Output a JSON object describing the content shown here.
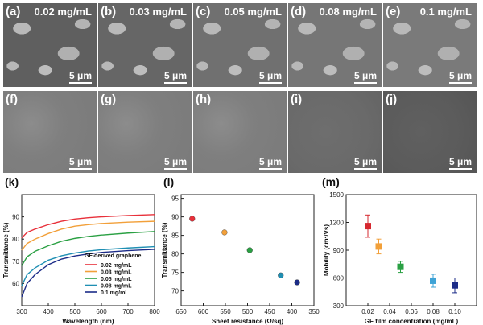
{
  "sem_top": [
    {
      "label": "(a)",
      "conc": "0.02 mg/mL",
      "scale": "5 μm"
    },
    {
      "label": "(b)",
      "conc": "0.03 mg/mL",
      "scale": "5 μm"
    },
    {
      "label": "(c)",
      "conc": "0.05 mg/mL",
      "scale": "5 μm"
    },
    {
      "label": "(d)",
      "conc": "0.08 mg/mL",
      "scale": "5 μm"
    },
    {
      "label": "(e)",
      "conc": "0.1 mg/mL",
      "scale": "5 μm"
    }
  ],
  "sem_bottom": [
    {
      "label": "(f)",
      "scale": "5 μm"
    },
    {
      "label": "(g)",
      "scale": "5 μm"
    },
    {
      "label": "(h)",
      "scale": "5 μm"
    },
    {
      "label": "(i)",
      "scale": "5 μm"
    },
    {
      "label": "(j)",
      "scale": "5 μm"
    }
  ],
  "chart_data": [
    {
      "panel": "(k)",
      "type": "line",
      "xlabel": "Wavelength (nm)",
      "ylabel": "Transmittance (%)",
      "xlim": [
        300,
        800
      ],
      "ylim": [
        50,
        100
      ],
      "xticks": [
        300,
        400,
        500,
        600,
        700,
        800
      ],
      "yticks": [
        60,
        70,
        80,
        90
      ],
      "legend_title": "GF-derived graphene",
      "legend_position": "bottom-right",
      "series": [
        {
          "name": "0.02 mg/mL",
          "color": "#e8303a",
          "x": [
            300,
            320,
            350,
            400,
            450,
            500,
            550,
            600,
            700,
            800
          ],
          "values": [
            80.5,
            83,
            84.5,
            86.5,
            88,
            89,
            89.6,
            90,
            90.6,
            91
          ]
        },
        {
          "name": "0.03 mg/mL",
          "color": "#f2a03a",
          "x": [
            300,
            320,
            350,
            400,
            450,
            500,
            550,
            600,
            700,
            800
          ],
          "values": [
            75,
            78,
            80,
            82.5,
            84.5,
            85.8,
            86.5,
            87,
            87.6,
            88
          ]
        },
        {
          "name": "0.05 mg/mL",
          "color": "#2aa043",
          "x": [
            300,
            320,
            350,
            400,
            450,
            500,
            550,
            600,
            700,
            800
          ],
          "values": [
            68,
            72,
            74.5,
            77,
            79,
            80.3,
            81.2,
            81.8,
            82.7,
            83.4
          ]
        },
        {
          "name": "0.08 mg/mL",
          "color": "#1f8fb3",
          "x": [
            300,
            320,
            350,
            400,
            450,
            500,
            550,
            600,
            700,
            800
          ],
          "values": [
            59,
            64,
            67,
            70.5,
            72.5,
            73.7,
            74.6,
            75.2,
            76,
            76.6
          ]
        },
        {
          "name": "0.1 mg/mL",
          "color": "#1c2c88",
          "x": [
            300,
            320,
            350,
            400,
            450,
            500,
            550,
            600,
            700,
            800
          ],
          "values": [
            54,
            60,
            64,
            68.5,
            71,
            72.4,
            73.3,
            74,
            74.8,
            75.4
          ]
        }
      ]
    },
    {
      "panel": "(l)",
      "type": "scatter",
      "xlabel": "Sheet resistance (Ω/sq)",
      "ylabel": "Transmittance (%)",
      "xlim": [
        650,
        350
      ],
      "ylim": [
        66,
        96
      ],
      "xticks": [
        650,
        600,
        550,
        500,
        450,
        400,
        350
      ],
      "yticks": [
        70,
        75,
        80,
        85,
        90,
        95
      ],
      "points": [
        {
          "x": 625,
          "y": 89.5,
          "color": "#e8303a"
        },
        {
          "x": 552,
          "y": 85.8,
          "color": "#f2a03a"
        },
        {
          "x": 495,
          "y": 81,
          "color": "#2aa043"
        },
        {
          "x": 425,
          "y": 74.2,
          "color": "#1f8fb3"
        },
        {
          "x": 388,
          "y": 72.3,
          "color": "#1c2c88"
        }
      ]
    },
    {
      "panel": "(m)",
      "type": "scatter",
      "xlabel": "GF film concentration (mg/mL)",
      "ylabel": "Mobility (cm²/Vs)",
      "xlim": [
        0,
        0.12
      ],
      "ylim": [
        300,
        1500
      ],
      "xticks": [
        0.02,
        0.04,
        0.06,
        0.08,
        0.1
      ],
      "xtick_labels": [
        "0.02",
        "0.04",
        "0.06",
        "0.08",
        "0.10"
      ],
      "yticks": [
        300,
        600,
        900,
        1200,
        1500
      ],
      "points": [
        {
          "x": 0.02,
          "y": 1160,
          "err": 120,
          "color": "#d6282f"
        },
        {
          "x": 0.03,
          "y": 940,
          "err": 80,
          "color": "#f2a03a"
        },
        {
          "x": 0.05,
          "y": 720,
          "err": 60,
          "color": "#2aa043"
        },
        {
          "x": 0.08,
          "y": 570,
          "err": 70,
          "color": "#3ea3d6"
        },
        {
          "x": 0.1,
          "y": 520,
          "err": 80,
          "color": "#1c2c88"
        }
      ]
    }
  ]
}
